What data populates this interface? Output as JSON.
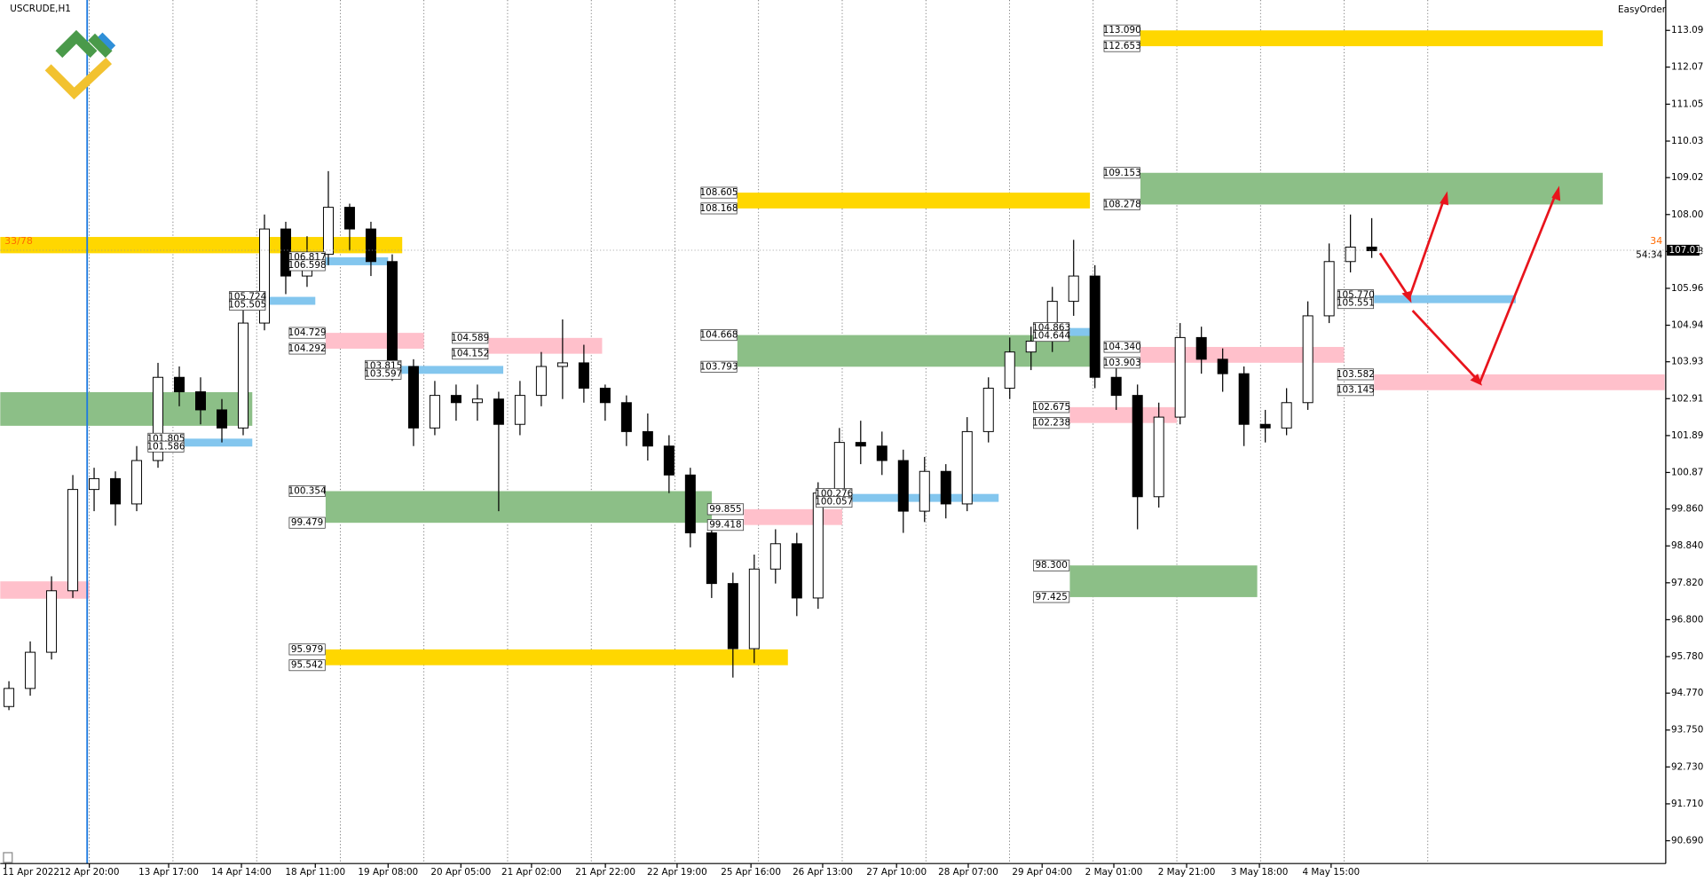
{
  "chart_data": {
    "type": "candlestick",
    "title": "USCRUDE,H1",
    "brand": "EasyOrder",
    "ylim": [
      90.06,
      113.93
    ],
    "yticks": [
      {
        "value": 113.09,
        "label": "113.090"
      },
      {
        "value": 112.075,
        "label": "112.075"
      },
      {
        "value": 111.05,
        "label": "111.050"
      },
      {
        "value": 110.03,
        "label": "110.030"
      },
      {
        "value": 109.02,
        "label": "109.020"
      },
      {
        "value": 108,
        "label": "108.000"
      },
      {
        "value": 106.98,
        "label": "106.980"
      },
      {
        "value": 105.96,
        "label": "105.960"
      },
      {
        "value": 104.94,
        "label": "104.940"
      },
      {
        "value": 103.93,
        "label": "103.930"
      },
      {
        "value": 102.91,
        "label": "102.910"
      },
      {
        "value": 101.89,
        "label": "101.890"
      },
      {
        "value": 100.87,
        "label": "100.870"
      },
      {
        "value": 99.86,
        "label": "99.860"
      },
      {
        "value": 98.84,
        "label": "98.840"
      },
      {
        "value": 97.82,
        "label": "97.820"
      },
      {
        "value": 96.8,
        "label": "96.800"
      },
      {
        "value": 95.78,
        "label": "95.780"
      },
      {
        "value": 94.77,
        "label": "94.770"
      },
      {
        "value": 93.75,
        "label": "93.750"
      },
      {
        "value": 92.73,
        "label": "92.730"
      },
      {
        "value": 91.71,
        "label": "91.710"
      },
      {
        "value": 90.69,
        "label": "90.690"
      }
    ],
    "categories": [
      "11 Apr 2022",
      "12 Apr 20:00",
      "13 Apr 17:00",
      "14 Apr 14:00",
      "18 Apr 11:00",
      "19 Apr 08:00",
      "20 Apr 05:00",
      "21 Apr 02:00",
      "21 Apr 22:00",
      "22 Apr 19:00",
      "25 Apr 16:00",
      "26 Apr 13:00",
      "27 Apr 10:00",
      "28 Apr 07:00",
      "29 Apr 04:00",
      "2 May 01:00",
      "2 May 21:00",
      "3 May 18:00",
      "4 May 15:00"
    ],
    "ohlc": [
      [
        94.4,
        95.1,
        94.3,
        94.9
      ],
      [
        94.9,
        96.2,
        94.7,
        95.9
      ],
      [
        95.9,
        98.0,
        95.7,
        97.6
      ],
      [
        97.6,
        100.8,
        97.4,
        100.4
      ],
      [
        100.4,
        101.0,
        99.8,
        100.7
      ],
      [
        100.7,
        100.9,
        99.4,
        100.0
      ],
      [
        100.0,
        101.6,
        99.8,
        101.2
      ],
      [
        101.2,
        103.9,
        101.0,
        103.5
      ],
      [
        103.5,
        103.8,
        102.7,
        103.1
      ],
      [
        103.1,
        103.5,
        102.2,
        102.6
      ],
      [
        102.6,
        102.9,
        101.7,
        102.1
      ],
      [
        102.1,
        105.4,
        101.9,
        105.0
      ],
      [
        105.0,
        108.0,
        104.8,
        107.6
      ],
      [
        107.6,
        107.8,
        105.8,
        106.3
      ],
      [
        106.3,
        107.4,
        106.0,
        106.9
      ],
      [
        106.9,
        109.2,
        106.6,
        108.2
      ],
      [
        108.2,
        108.3,
        107.0,
        107.6
      ],
      [
        107.6,
        107.8,
        106.3,
        106.7
      ],
      [
        106.7,
        106.9,
        103.4,
        103.8
      ],
      [
        103.8,
        104.0,
        101.6,
        102.1
      ],
      [
        102.1,
        103.4,
        101.9,
        103.0
      ],
      [
        103.0,
        103.3,
        102.3,
        102.8
      ],
      [
        102.8,
        103.3,
        102.3,
        102.9
      ],
      [
        102.9,
        103.1,
        99.8,
        102.2
      ],
      [
        102.2,
        103.4,
        101.9,
        103.0
      ],
      [
        103.0,
        104.2,
        102.7,
        103.8
      ],
      [
        103.8,
        105.1,
        102.9,
        103.9
      ],
      [
        103.9,
        104.4,
        102.8,
        103.2
      ],
      [
        103.2,
        103.3,
        102.3,
        102.8
      ],
      [
        102.8,
        103.0,
        101.6,
        102.0
      ],
      [
        102.0,
        102.5,
        101.2,
        101.6
      ],
      [
        101.6,
        101.9,
        100.3,
        100.8
      ],
      [
        100.8,
        101.0,
        98.8,
        99.2
      ],
      [
        99.2,
        99.5,
        97.4,
        97.8
      ],
      [
        97.8,
        98.1,
        95.2,
        96.0
      ],
      [
        96.0,
        98.6,
        95.6,
        98.2
      ],
      [
        98.2,
        99.3,
        97.8,
        98.9
      ],
      [
        98.9,
        99.2,
        96.9,
        97.4
      ],
      [
        97.4,
        100.6,
        97.1,
        100.3
      ],
      [
        100.3,
        102.1,
        100.0,
        101.7
      ],
      [
        101.7,
        102.3,
        101.1,
        101.6
      ],
      [
        101.6,
        102.0,
        100.8,
        101.2
      ],
      [
        101.2,
        101.5,
        99.2,
        99.8
      ],
      [
        99.8,
        101.3,
        99.5,
        100.9
      ],
      [
        100.9,
        101.1,
        99.6,
        100.0
      ],
      [
        100.0,
        102.4,
        99.8,
        102.0
      ],
      [
        102.0,
        103.5,
        101.7,
        103.2
      ],
      [
        103.2,
        104.6,
        102.9,
        104.2
      ],
      [
        104.2,
        104.9,
        103.7,
        104.5
      ],
      [
        104.5,
        106.0,
        104.2,
        105.6
      ],
      [
        105.6,
        107.3,
        105.2,
        106.3
      ],
      [
        106.3,
        106.6,
        103.2,
        103.5
      ],
      [
        103.5,
        103.9,
        102.6,
        103.0
      ],
      [
        103.0,
        103.3,
        99.3,
        100.2
      ],
      [
        100.2,
        102.8,
        99.9,
        102.4
      ],
      [
        102.4,
        105.0,
        102.2,
        104.6
      ],
      [
        104.6,
        104.9,
        103.6,
        104.0
      ],
      [
        104.0,
        104.3,
        103.1,
        103.6
      ],
      [
        103.6,
        103.8,
        101.6,
        102.2
      ],
      [
        102.2,
        102.6,
        101.7,
        102.1
      ],
      [
        102.1,
        103.2,
        101.9,
        102.8
      ],
      [
        102.8,
        105.6,
        102.6,
        105.2
      ],
      [
        105.2,
        107.2,
        105.0,
        106.7
      ],
      [
        106.7,
        108.0,
        106.4,
        107.1
      ],
      [
        107.1,
        107.9,
        106.8,
        107.0
      ]
    ],
    "zones": [
      {
        "color": "#ffd700",
        "values": [
          113.09,
          112.653
        ],
        "value_labels": [
          "113.090",
          "112.653"
        ]
      },
      {
        "color": "#8cbf87",
        "values": [
          109.153,
          108.278
        ],
        "value_labels": [
          "109.153",
          "108.278"
        ]
      },
      {
        "color": "#ffd700",
        "values": [
          108.605,
          108.168
        ],
        "value_labels": [
          "108.605",
          "108.168"
        ]
      },
      {
        "color": "#8cbf87",
        "values": [
          104.668,
          103.793
        ],
        "value_labels": [
          "104.668",
          "103.793"
        ]
      },
      {
        "color": "#ffd700",
        "values": [
          107.38,
          106.93
        ]
      },
      {
        "color": "#8cbf87",
        "values": [
          103.09,
          102.16
        ]
      },
      {
        "color": "#ffc0cb",
        "values": [
          97.86,
          97.38
        ]
      },
      {
        "color": "#83c6ee",
        "values": [
          101.805,
          101.586
        ],
        "value_labels": [
          "101.805",
          "101.586"
        ]
      },
      {
        "color": "#83c6ee",
        "values": [
          105.724,
          105.505
        ],
        "value_labels": [
          "105.724",
          "105.505"
        ]
      },
      {
        "color": "#83c6ee",
        "values": [
          106.817,
          106.598
        ],
        "value_labels": [
          "106.817",
          "106.598"
        ]
      },
      {
        "color": "#ffc0cb",
        "values": [
          104.729,
          104.292
        ],
        "value_labels": [
          "104.729",
          "104.292"
        ]
      },
      {
        "color": "#83c6ee",
        "values": [
          103.815,
          103.597
        ],
        "value_labels": [
          "103.815",
          "103.597"
        ]
      },
      {
        "color": "#ffc0cb",
        "values": [
          104.589,
          104.152
        ],
        "value_labels": [
          "104.589",
          "104.152"
        ]
      },
      {
        "color": "#8cbf87",
        "values": [
          100.354,
          99.479
        ],
        "value_labels": [
          "100.354",
          "99.479"
        ]
      },
      {
        "color": "#ffd700",
        "values": [
          95.979,
          95.542
        ],
        "value_labels": [
          "95.979",
          "95.542"
        ]
      },
      {
        "color": "#ffc0cb",
        "values": [
          99.855,
          99.418
        ],
        "value_labels": [
          "99.855",
          "99.418"
        ]
      },
      {
        "color": "#83c6ee",
        "values": [
          100.276,
          100.057
        ],
        "value_labels": [
          "100.276",
          "100.057"
        ]
      },
      {
        "color": "#83c6ee",
        "values": [
          104.863,
          104.644
        ],
        "value_labels": [
          "104.863",
          "104.644"
        ]
      },
      {
        "color": "#ffc0cb",
        "values": [
          102.675,
          102.238
        ],
        "value_labels": [
          "102.675",
          "102.238"
        ]
      },
      {
        "color": "#8cbf87",
        "values": [
          98.3,
          97.425
        ],
        "value_labels": [
          "98.300",
          "97.425"
        ]
      },
      {
        "color": "#ffc0cb",
        "values": [
          104.34,
          103.903
        ],
        "value_labels": [
          "104.340",
          "103.903"
        ]
      },
      {
        "color": "#83c6ee",
        "values": [
          105.77,
          105.551
        ],
        "value_labels": [
          "105.770",
          "105.551"
        ]
      },
      {
        "color": "#ffc0cb",
        "values": [
          103.582,
          103.145
        ],
        "value_labels": [
          "103.582",
          "103.145"
        ]
      }
    ],
    "zone_note": "33/78",
    "current_price": {
      "value": 107.013,
      "label": "107.013"
    },
    "countdown": "54:34",
    "spread": "34"
  }
}
